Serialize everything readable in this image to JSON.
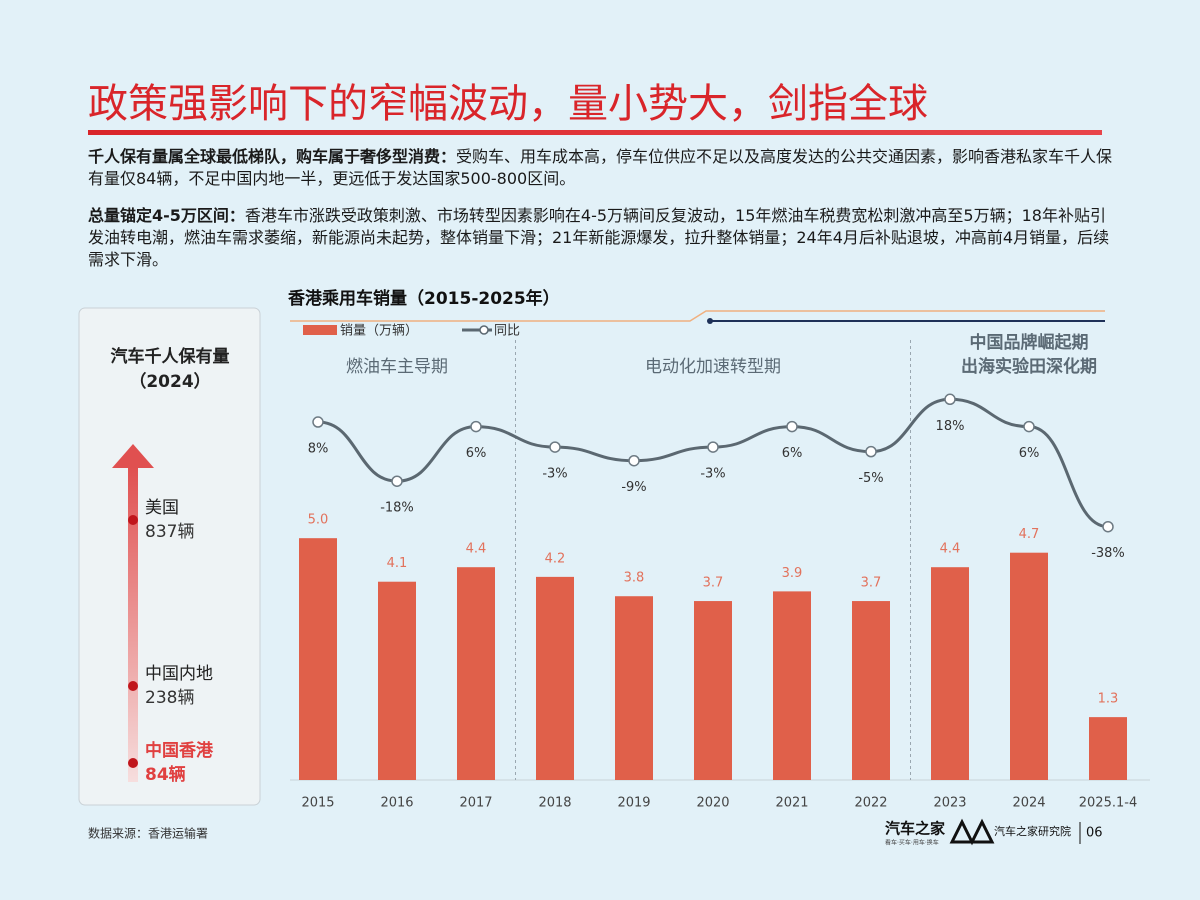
{
  "title": "政策强影响下的窄幅波动，量小势大，剑指全球",
  "paragraphs": [
    {
      "lead": "千人保有量属全球最低梯队，购车属于奢侈型消费：",
      "text": "受购车、用车成本高，停车位供应不足以及高度发达的公共交通因素，影响香港私家车千人保有量仅84辆，不足中国内地一半，更远低于发达国家500-800区间。"
    },
    {
      "lead": "总量锚定4-5万区间：",
      "text": "香港车市涨跌受政策刺激、市场转型因素影响在4-5万辆间反复波动，15年燃油车税费宽松刺激冲高至5万辆；18年补贴引发油转电潮，燃油车需求萎缩，新能源尚未起势，整体销量下滑；21年新能源爆发，拉升整体销量；24年4月后补贴退坡，冲高前4月销量，后续需求下滑。"
    }
  ],
  "side_panel": {
    "title": "汽车千人保有量",
    "subtitle": "（2024）",
    "items": [
      {
        "name": "美国",
        "value": "837辆"
      },
      {
        "name": "中国内地",
        "value": "238辆"
      },
      {
        "name": "中国香港",
        "value": "84辆"
      }
    ]
  },
  "chart_data": {
    "type": "bar",
    "title": "香港乘用车销量（2015-2025年）",
    "categories": [
      "2015",
      "2016",
      "2017",
      "2018",
      "2019",
      "2020",
      "2021",
      "2022",
      "2023",
      "2024",
      "2025.1-4"
    ],
    "series": [
      {
        "name": "销量（万辆）",
        "type": "bar",
        "color": "#e0604a",
        "values": [
          5.0,
          4.1,
          4.4,
          4.2,
          3.8,
          3.7,
          3.9,
          3.7,
          4.4,
          4.7,
          1.3
        ],
        "value_labels": [
          "5.0",
          "4.1",
          "4.4",
          "4.2",
          "3.8",
          "3.7",
          "3.9",
          "3.7",
          "4.4",
          "4.7",
          "1.3"
        ]
      },
      {
        "name": "同比",
        "type": "line",
        "axis": "y2",
        "color": "#5b6871",
        "values": [
          8,
          -18,
          6,
          -3,
          -9,
          -3,
          6,
          -5,
          18,
          6,
          -38
        ],
        "value_labels": [
          "8%",
          "-18%",
          "6%",
          "-3%",
          "-9%",
          "-3%",
          "6%",
          "-5%",
          "18%",
          "6%",
          "-38%"
        ]
      }
    ],
    "ylim": [
      0,
      5.5
    ],
    "y2lim": [
      -50,
      30
    ],
    "phases": [
      {
        "lines": [
          "燃油车主导期"
        ]
      },
      {
        "lines": [
          "电动化加速转型期"
        ]
      },
      {
        "lines": [
          "中国品牌崛起期",
          "出海实验田深化期"
        ]
      }
    ]
  },
  "footer": {
    "source": "数据来源：香港运输署",
    "brand": "汽车之家",
    "brand_slogan": "看车·买车·用车·换车",
    "institute": "汽车之家研究院",
    "page": "06"
  }
}
